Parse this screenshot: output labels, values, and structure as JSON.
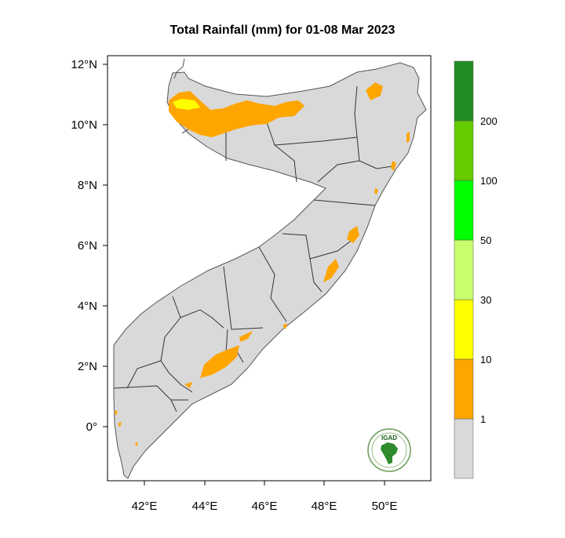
{
  "title": "Total Rainfall (mm) for 01-08 Mar 2023",
  "lat_labels": [
    "12°N",
    "10°N",
    "8°N",
    "6°N",
    "4°N",
    "2°N",
    "0°"
  ],
  "lon_labels": [
    "42°E",
    "44°E",
    "46°E",
    "48°E",
    "50°E"
  ],
  "legend": {
    "breaks": [
      "1",
      "10",
      "30",
      "50",
      "100",
      "200"
    ],
    "colors": [
      "#d9d9d9",
      "#ffa500",
      "#ffff00",
      "#c8ff6e",
      "#2ee82e",
      "#00ff00",
      "#66cc00",
      "#228b22"
    ]
  },
  "map_colors": {
    "land": "#d9d9d9",
    "rain_1_10": "#ffa500",
    "rain_10_30": "#ffff00"
  },
  "logo": {
    "text": "IGAD"
  }
}
